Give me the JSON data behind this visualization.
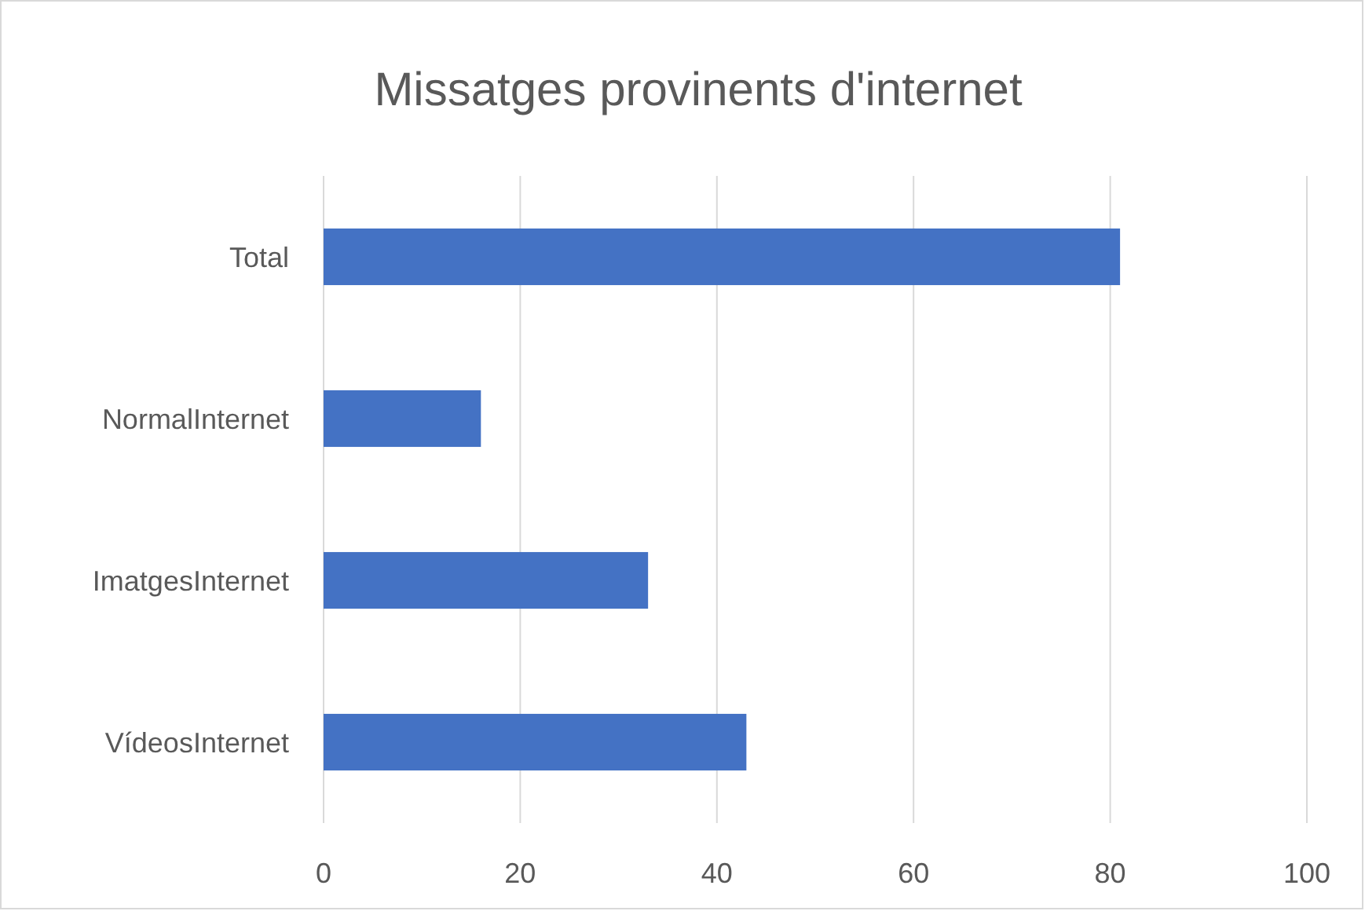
{
  "chart_data": {
    "type": "bar",
    "title": "Missatges provinents d'internet",
    "orientation": "horizontal",
    "categories": [
      "Total",
      "NormalInternet",
      "ImatgesInternet",
      "VídeosInternet"
    ],
    "values": [
      81,
      16,
      33,
      43
    ],
    "color": "#4472c4",
    "xlim": [
      0,
      100
    ],
    "xticks": [
      0,
      20,
      40,
      60,
      80,
      100
    ],
    "grid": "x"
  }
}
